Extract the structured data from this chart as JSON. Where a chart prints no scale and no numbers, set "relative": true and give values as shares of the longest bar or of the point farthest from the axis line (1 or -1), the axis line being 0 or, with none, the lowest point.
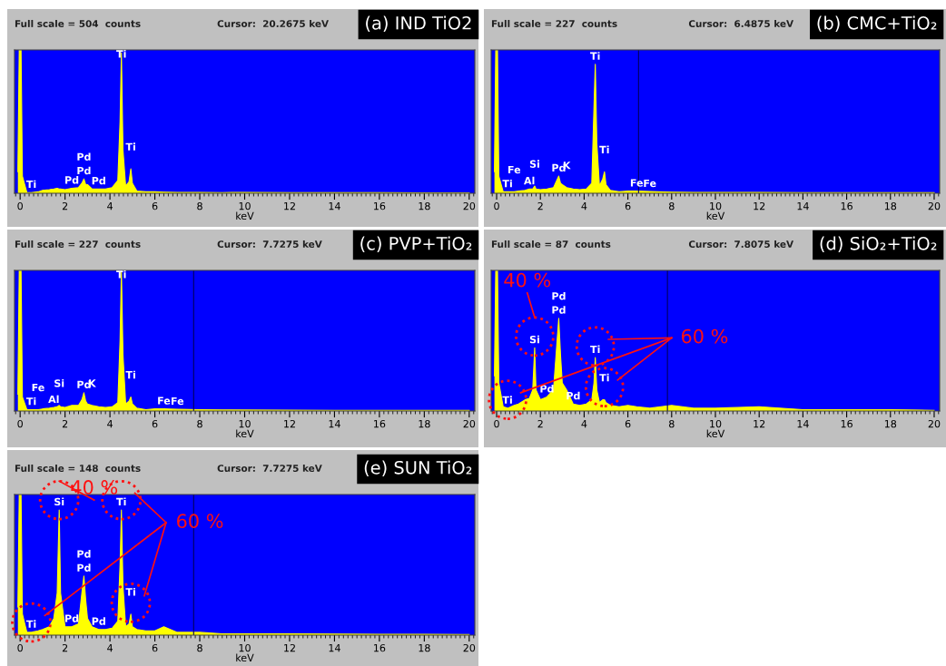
{
  "chart_data": [
    {
      "type": "area",
      "title": "(a) IND TiO2",
      "xlabel": "keV",
      "relative": true,
      "xlim": [
        -0.25,
        20.25
      ],
      "xticks": [
        0,
        2,
        4,
        6,
        8,
        10,
        12,
        14,
        16,
        18,
        20
      ],
      "x": [
        -0.1,
        -0.04,
        0,
        0.04,
        0.1,
        0.3,
        0.5,
        0.8,
        1.0,
        1.3,
        1.5,
        1.65,
        1.74,
        1.8,
        2.0,
        2.3,
        2.6,
        2.75,
        2.84,
        2.92,
        3.0,
        3.2,
        3.5,
        3.8,
        4.1,
        4.35,
        4.45,
        4.51,
        4.58,
        4.7,
        4.85,
        4.93,
        5.0,
        5.2,
        5.6,
        6.0,
        6.4,
        7.0,
        8.0,
        9.0,
        10.0,
        12.0,
        14.0,
        16.0,
        18.0,
        20.0
      ],
      "series": [
        {
          "color": "#ffff00",
          "values": [
            0.15,
            1,
            1,
            1,
            0.12,
            0.005,
            0.005,
            0.01,
            0.02,
            0.025,
            0.03,
            0.035,
            0.03,
            0.03,
            0.025,
            0.035,
            0.04,
            0.07,
            0.1,
            0.06,
            0.06,
            0.03,
            0.03,
            0.03,
            0.04,
            0.09,
            0.5,
            0.98,
            0.3,
            0.05,
            0.08,
            0.17,
            0.07,
            0.015,
            0.01,
            0.01,
            0.008,
            0.006,
            0.006,
            0.005,
            0.006,
            0.005,
            0.004,
            0.004,
            0.003,
            0.003
          ]
        }
      ],
      "annotations": [
        "Full scale = 504  counts",
        "Cursor:  20.2675 keV",
        {
          "text": "Ti",
          "x": 0.5,
          "y": 0.005
        },
        {
          "text": "Pd",
          "x": 2.3,
          "y": 0.035
        },
        {
          "text": "Pd",
          "x": 2.84,
          "y": 0.1
        },
        {
          "text": "Pd",
          "x": 2.84,
          "y": 0.1
        },
        {
          "text": "Pd",
          "x": 3.5,
          "y": 0.03
        },
        {
          "text": "Ti",
          "x": 4.51,
          "y": 0.98
        },
        {
          "text": "Ti",
          "x": 4.93,
          "y": 0.17
        }
      ]
    },
    {
      "type": "area",
      "title": "(b) CMC+TiO₂",
      "xlabel": "keV",
      "relative": true,
      "xlim": [
        -0.25,
        20.25
      ],
      "xticks": [
        0,
        2,
        4,
        6,
        8,
        10,
        12,
        14,
        16,
        18,
        20
      ],
      "x": [
        -0.1,
        -0.04,
        0,
        0.04,
        0.1,
        0.3,
        0.5,
        0.8,
        1.0,
        1.3,
        1.5,
        1.65,
        1.74,
        1.8,
        2.0,
        2.3,
        2.6,
        2.75,
        2.84,
        2.92,
        3.0,
        3.2,
        3.5,
        3.8,
        4.1,
        4.35,
        4.45,
        4.51,
        4.58,
        4.7,
        4.85,
        4.93,
        5.0,
        5.2,
        5.6,
        6.0,
        6.4,
        7.0,
        8.0,
        9.0,
        10.0,
        12.0,
        14.0,
        16.0,
        18.0,
        20.0
      ],
      "series": [
        {
          "color": "#ffff00",
          "values": [
            0.15,
            1,
            1,
            1,
            0.12,
            0.01,
            0.01,
            0.01,
            0.015,
            0.02,
            0.03,
            0.03,
            0.05,
            0.03,
            0.025,
            0.03,
            0.04,
            0.09,
            0.12,
            0.07,
            0.06,
            0.04,
            0.03,
            0.025,
            0.03,
            0.07,
            0.6,
            0.9,
            0.35,
            0.05,
            0.1,
            0.15,
            0.06,
            0.02,
            0.01,
            0.015,
            0.015,
            0.012,
            0.008,
            0.006,
            0.006,
            0.006,
            0.005,
            0.005,
            0.004,
            0.004
          ]
        }
      ],
      "ref_lines": [
        {
          "axis": "x",
          "value": 6.4875,
          "color": "#000060"
        }
      ],
      "annotations": [
        "Full scale = 227  counts",
        "Cursor:  6.4875 keV",
        {
          "text": "Ti",
          "x": 0.5,
          "y": 0.01
        },
        {
          "text": "Fe",
          "x": 0.8,
          "y": 0.01
        },
        {
          "text": "Al",
          "x": 1.5,
          "y": 0.03
        },
        {
          "text": "Si",
          "x": 1.74,
          "y": 0.05
        },
        {
          "text": "Pd",
          "x": 2.84,
          "y": 0.12
        },
        {
          "text": "K",
          "x": 3.2,
          "y": 0.04
        },
        {
          "text": "Ti",
          "x": 4.51,
          "y": 0.9
        },
        {
          "text": "Ti",
          "x": 4.93,
          "y": 0.15
        },
        {
          "text": "Fe",
          "x": 6.4,
          "y": 0.015
        },
        {
          "text": "Fe",
          "x": 7.0,
          "y": 0.012
        }
      ]
    },
    {
      "type": "area",
      "title": "(c) PVP+TiO₂",
      "xlabel": "keV",
      "relative": true,
      "xlim": [
        -0.25,
        20.25
      ],
      "xticks": [
        0,
        2,
        4,
        6,
        8,
        10,
        12,
        14,
        16,
        18,
        20
      ],
      "x": [
        -0.1,
        -0.04,
        0,
        0.04,
        0.1,
        0.3,
        0.5,
        0.8,
        1.0,
        1.3,
        1.5,
        1.65,
        1.74,
        1.8,
        2.0,
        2.3,
        2.6,
        2.75,
        2.84,
        2.92,
        3.0,
        3.2,
        3.5,
        3.8,
        4.1,
        4.35,
        4.45,
        4.51,
        4.58,
        4.7,
        4.85,
        4.93,
        5.0,
        5.2,
        5.6,
        6.0,
        6.4,
        7.0,
        8.0,
        9.0,
        10.0,
        12.0,
        14.0,
        16.0,
        18.0,
        20.0
      ],
      "series": [
        {
          "color": "#ffff00",
          "values": [
            0.12,
            1,
            1,
            1,
            0.1,
            0.01,
            0.01,
            0.01,
            0.015,
            0.02,
            0.025,
            0.03,
            0.04,
            0.03,
            0.025,
            0.04,
            0.04,
            0.08,
            0.13,
            0.07,
            0.05,
            0.04,
            0.03,
            0.025,
            0.03,
            0.06,
            0.5,
            1,
            0.4,
            0.05,
            0.07,
            0.1,
            0.05,
            0.02,
            0.01,
            0.015,
            0.015,
            0.012,
            0.01,
            0.008,
            0.007,
            0.006,
            0.005,
            0.005,
            0.004,
            0.004
          ]
        }
      ],
      "ref_lines": [
        {
          "axis": "x",
          "value": 7.7275,
          "color": "#000060"
        }
      ],
      "annotations": [
        "Full scale = 227  counts",
        "Cursor:  7.7275 keV",
        {
          "text": "Ti",
          "x": 0.5,
          "y": 0.01
        },
        {
          "text": "Fe",
          "x": 0.8,
          "y": 0.01
        },
        {
          "text": "Al",
          "x": 1.5,
          "y": 0.025
        },
        {
          "text": "Si",
          "x": 1.74,
          "y": 0.04
        },
        {
          "text": "Pd",
          "x": 2.84,
          "y": 0.13
        },
        {
          "text": "K",
          "x": 3.2,
          "y": 0.04
        },
        {
          "text": "Ti",
          "x": 4.51,
          "y": 1
        },
        {
          "text": "Ti",
          "x": 4.93,
          "y": 0.1
        },
        {
          "text": "Fe",
          "x": 6.4,
          "y": 0.015
        },
        {
          "text": "Fe",
          "x": 7.0,
          "y": 0.012
        }
      ]
    },
    {
      "type": "area",
      "title": "(d) SiO₂+TiO₂",
      "xlabel": "keV",
      "relative": true,
      "xlim": [
        -0.25,
        20.25
      ],
      "xticks": [
        0,
        2,
        4,
        6,
        8,
        10,
        12,
        14,
        16,
        18,
        20
      ],
      "x": [
        -0.1,
        -0.04,
        0,
        0.04,
        0.1,
        0.3,
        0.5,
        0.8,
        1.0,
        1.3,
        1.5,
        1.65,
        1.74,
        1.8,
        2.0,
        2.3,
        2.6,
        2.75,
        2.84,
        2.92,
        3.0,
        3.2,
        3.5,
        3.8,
        4.1,
        4.35,
        4.45,
        4.51,
        4.58,
        4.7,
        4.85,
        4.93,
        5.0,
        5.2,
        5.6,
        6.0,
        6.4,
        7.0,
        8.0,
        9.0,
        10.0,
        12.0,
        14.0,
        16.0,
        18.0,
        20.0
      ],
      "series": [
        {
          "color": "#ffff00",
          "values": [
            0.25,
            1,
            1,
            1,
            0.2,
            0.03,
            0.02,
            0.04,
            0.05,
            0.08,
            0.09,
            0.15,
            0.45,
            0.15,
            0.08,
            0.1,
            0.15,
            0.47,
            0.66,
            0.4,
            0.2,
            0.15,
            0.05,
            0.04,
            0.05,
            0.08,
            0.2,
            0.38,
            0.15,
            0.06,
            0.08,
            0.08,
            0.06,
            0.04,
            0.03,
            0.04,
            0.03,
            0.02,
            0.04,
            0.02,
            0.02,
            0.03,
            0.01,
            0.01,
            0.01,
            0.005
          ]
        }
      ],
      "ref_lines": [
        {
          "axis": "x",
          "value": 7.8075,
          "color": "#000060"
        }
      ],
      "annotations": [
        "Full scale = 87  counts",
        "Cursor:  7.8075 keV",
        "40 %",
        "60 %",
        {
          "text": "Ti",
          "x": 0.5,
          "y": 0.02
        },
        {
          "text": "Si",
          "x": 1.74,
          "y": 0.45
        },
        {
          "text": "Pd",
          "x": 2.3,
          "y": 0.1
        },
        {
          "text": "Pd",
          "x": 2.84,
          "y": 0.66
        },
        {
          "text": "Pd",
          "x": 2.84,
          "y": 0.66
        },
        {
          "text": "Pd",
          "x": 3.5,
          "y": 0.05
        },
        {
          "text": "Ti",
          "x": 4.51,
          "y": 0.38
        },
        {
          "text": "Ti",
          "x": 4.93,
          "y": 0.08
        }
      ]
    },
    {
      "type": "area",
      "title": "(e) SUN TiO₂",
      "xlabel": "keV",
      "relative": true,
      "xlim": [
        -0.25,
        20.25
      ],
      "xticks": [
        0,
        2,
        4,
        6,
        8,
        10,
        12,
        14,
        16,
        18,
        20
      ],
      "x": [
        -0.1,
        -0.04,
        0,
        0.04,
        0.1,
        0.3,
        0.5,
        0.8,
        1.0,
        1.3,
        1.5,
        1.65,
        1.74,
        1.8,
        2.0,
        2.3,
        2.6,
        2.75,
        2.84,
        2.92,
        3.0,
        3.2,
        3.5,
        3.8,
        4.1,
        4.35,
        4.45,
        4.51,
        4.58,
        4.7,
        4.85,
        4.93,
        5.0,
        5.2,
        5.6,
        6.0,
        6.4,
        7.0,
        8.0,
        9.0,
        10.0,
        12.0,
        14.0,
        16.0,
        18.0,
        20.0
      ],
      "series": [
        {
          "color": "#ffff00",
          "values": [
            0.2,
            1,
            1,
            1,
            0.15,
            0.02,
            0.02,
            0.03,
            0.04,
            0.06,
            0.12,
            0.3,
            0.89,
            0.3,
            0.06,
            0.06,
            0.08,
            0.3,
            0.42,
            0.25,
            0.12,
            0.06,
            0.04,
            0.04,
            0.05,
            0.1,
            0.5,
            0.89,
            0.35,
            0.06,
            0.08,
            0.15,
            0.06,
            0.04,
            0.03,
            0.03,
            0.06,
            0.02,
            0.02,
            0.01,
            0.01,
            0.01,
            0.008,
            0.006,
            0.006,
            0.005
          ]
        }
      ],
      "ref_lines": [
        {
          "axis": "x",
          "value": 7.7275,
          "color": "#000060"
        }
      ],
      "annotations": [
        "Full scale = 148  counts",
        "Cursor:  7.7275 keV",
        "40 %",
        "60 %",
        {
          "text": "Ti",
          "x": 0.5,
          "y": 0.02
        },
        {
          "text": "Si",
          "x": 1.74,
          "y": 0.89
        },
        {
          "text": "Pd",
          "x": 2.3,
          "y": 0.06
        },
        {
          "text": "Pd",
          "x": 2.84,
          "y": 0.42
        },
        {
          "text": "Pd",
          "x": 2.84,
          "y": 0.42
        },
        {
          "text": "Pd",
          "x": 3.5,
          "y": 0.04
        },
        {
          "text": "Ti",
          "x": 4.51,
          "y": 0.89
        },
        {
          "text": "Ti",
          "x": 4.93,
          "y": 0.15
        }
      ]
    }
  ]
}
